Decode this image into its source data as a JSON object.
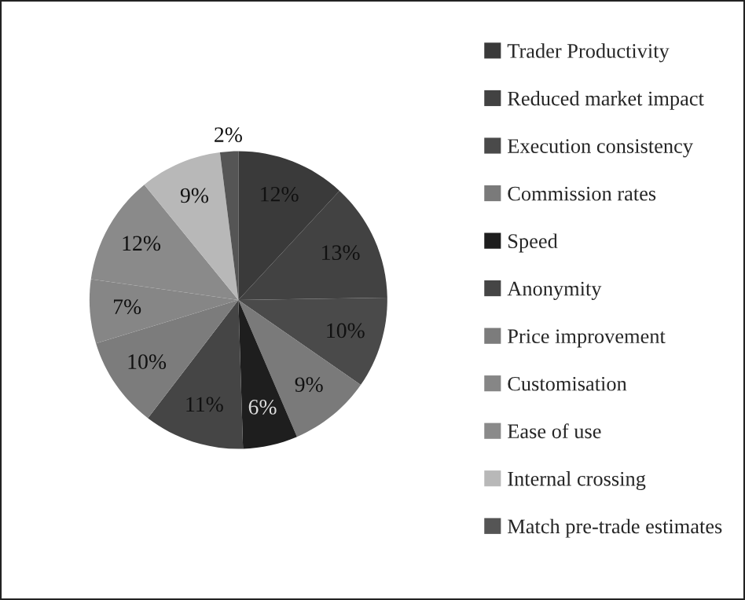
{
  "chart_data": {
    "type": "pie",
    "categories": [
      "Trader Productivity",
      "Reduced market impact",
      "Execution consistency",
      "Commission rates",
      "Speed",
      "Anonymity",
      "Price improvement",
      "Customisation",
      "Ease of use",
      "Internal crossing",
      "Match pre-trade estimates"
    ],
    "values": [
      12,
      13,
      10,
      9,
      6,
      11,
      10,
      7,
      12,
      9,
      2
    ],
    "value_labels": [
      "12%",
      "13%",
      "10%",
      "9%",
      "6%",
      "11%",
      "10%",
      "7%",
      "12%",
      "9%",
      "2%"
    ],
    "colors": [
      "#3a3a3a",
      "#424242",
      "#4a4a4a",
      "#7a7a7a",
      "#1e1e1e",
      "#454545",
      "#7c7c7c",
      "#868686",
      "#8a8a8a",
      "#b8b8b8",
      "#555555"
    ],
    "legend": "right"
  }
}
